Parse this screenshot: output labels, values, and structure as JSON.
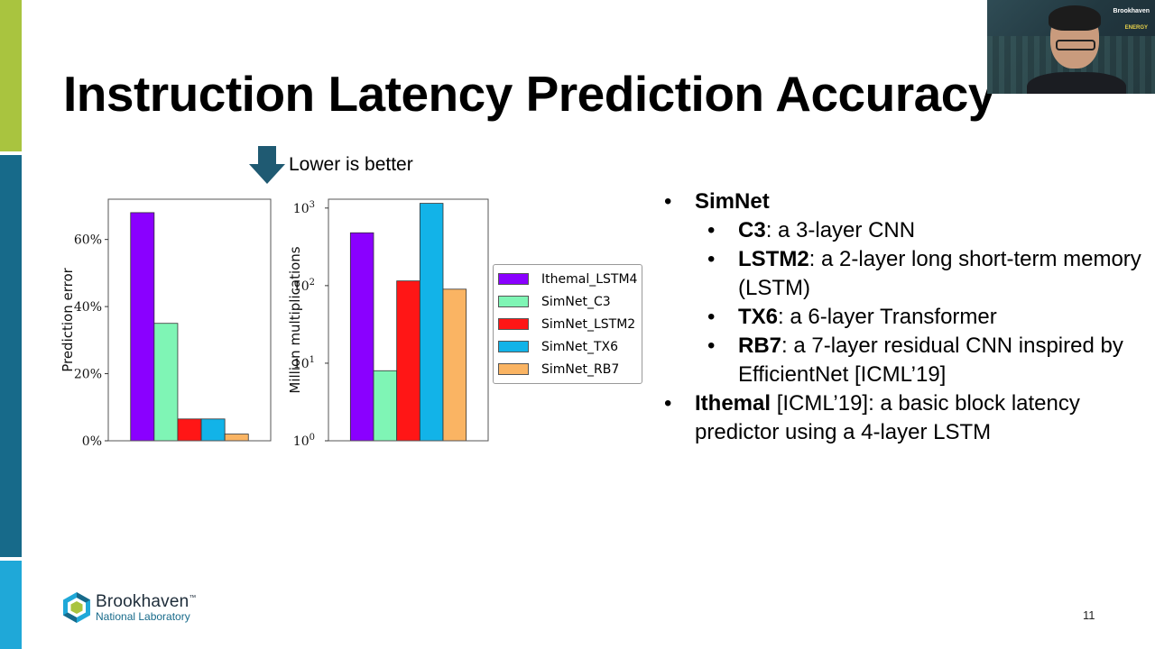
{
  "slide": {
    "title": "Instruction Latency Prediction Accuracy",
    "hint": "Lower is better",
    "page_number": "11",
    "logo_name": "Brookhaven",
    "logo_tm": "™",
    "logo_sub": "National Laboratory"
  },
  "bullets": [
    {
      "level": 1,
      "bold": "SimNet",
      "text": ""
    },
    {
      "level": 2,
      "bold": "C3",
      "text": ": a 3-layer CNN"
    },
    {
      "level": 2,
      "bold": "LSTM2",
      "text": ": a 2-layer long short-term memory (LSTM)"
    },
    {
      "level": 2,
      "bold": "TX6",
      "text": ": a 6-layer Transformer"
    },
    {
      "level": 2,
      "bold": "RB7",
      "text": ": a 7-layer residual CNN inspired by EfficientNet [ICML’19]"
    },
    {
      "level": 1,
      "bold": "Ithemal",
      "text": " [ICML’19]: a basic block latency predictor using a 4-layer LSTM"
    }
  ],
  "webcam": {
    "logo_line1": "Brookhaven",
    "logo_line2": "ENERGY"
  },
  "chart_data": [
    {
      "type": "bar",
      "categories": [
        "Ithemal_LSTM4",
        "SimNet_C3",
        "SimNet_LSTM2",
        "SimNet_TX6",
        "SimNet_RB7"
      ],
      "values": [
        68,
        35,
        6.5,
        6.5,
        2
      ],
      "colors": [
        "#8a00ff",
        "#7ff5b5",
        "#ff1616",
        "#12b3e8",
        "#fab463"
      ],
      "ylabel": "Prediction error",
      "ylim": [
        0,
        72
      ],
      "yticks": [
        0,
        20,
        40,
        60
      ],
      "ytick_labels": [
        "0%",
        "20%",
        "40%",
        "60%"
      ],
      "legend": "none",
      "grid": false
    },
    {
      "type": "bar",
      "categories": [
        "Ithemal_LSTM4",
        "SimNet_C3",
        "SimNet_LSTM2",
        "SimNet_TX6",
        "SimNet_RB7"
      ],
      "values": [
        480,
        8,
        115,
        1150,
        90
      ],
      "colors": [
        "#8a00ff",
        "#7ff5b5",
        "#ff1616",
        "#12b3e8",
        "#fab463"
      ],
      "ylabel": "Million multiplications",
      "yscale": "log",
      "ylim": [
        1,
        1300
      ],
      "yticks": [
        1,
        10,
        100,
        1000
      ],
      "ytick_labels": [
        "10^0",
        "10^1",
        "10^2",
        "10^3"
      ],
      "legend": "right",
      "grid": false
    }
  ]
}
